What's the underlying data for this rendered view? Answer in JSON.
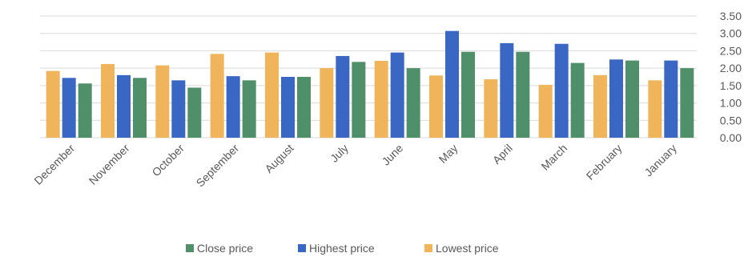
{
  "chart_data": {
    "type": "bar",
    "categories": [
      "December",
      "November",
      "October",
      "September",
      "August",
      "July",
      "June",
      "May",
      "April",
      "March",
      "February",
      "January"
    ],
    "series": [
      {
        "name": "Lowest price",
        "color": "#f0b55a",
        "values": [
          1.92,
          2.12,
          2.08,
          2.41,
          2.45,
          2.0,
          2.21,
          1.79,
          1.68,
          1.52,
          1.8,
          1.65
        ]
      },
      {
        "name": "Highest price",
        "color": "#3a66c4",
        "values": [
          1.72,
          1.8,
          1.65,
          1.77,
          1.75,
          2.35,
          2.45,
          3.07,
          2.72,
          2.7,
          2.25,
          2.22
        ]
      },
      {
        "name": "Close price",
        "color": "#4f8f6a",
        "values": [
          1.56,
          1.72,
          1.44,
          1.65,
          1.75,
          2.18,
          2.0,
          2.47,
          2.47,
          2.15,
          2.22,
          2.0
        ]
      }
    ],
    "legend_order": [
      "Close price",
      "Highest price",
      "Lowest price"
    ],
    "y_ticks": [
      "0.00",
      "0.50",
      "1.00",
      "1.50",
      "2.00",
      "2.50",
      "3.00",
      "3.50"
    ],
    "ylim": [
      0,
      3.5
    ],
    "y_axis_side": "right",
    "grid": true,
    "legend_position": "bottom-center",
    "title": "",
    "xlabel": "",
    "ylabel": ""
  }
}
